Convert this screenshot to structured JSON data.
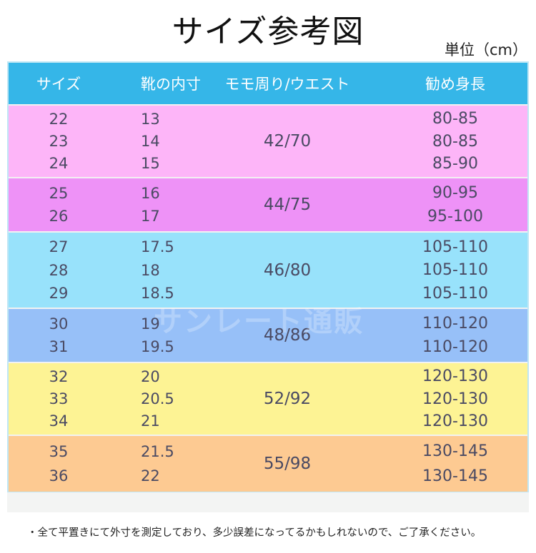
{
  "title": "サイズ参考図",
  "unit": "単位（cm）",
  "headers": [
    "サイズ",
    "靴の内寸",
    "モモ周り/ウエスト",
    "勧め身長"
  ],
  "groups": [
    {
      "color": "#fdb5f8",
      "sizes": [
        "22",
        "23",
        "24"
      ],
      "insole": [
        "13",
        "14",
        "15"
      ],
      "thigh_waist": "42/70",
      "height": [
        "80-85",
        "80-85",
        "85-90"
      ]
    },
    {
      "color": "#ee92f7",
      "sizes": [
        "25",
        "26"
      ],
      "insole": [
        "16",
        "17"
      ],
      "thigh_waist": "44/75",
      "height": [
        "90-95",
        "95-100"
      ]
    },
    {
      "color": "#98e2fb",
      "sizes": [
        "27",
        "28",
        "29"
      ],
      "insole": [
        "17.5",
        "18",
        "18.5"
      ],
      "thigh_waist": "46/80",
      "height": [
        "105-110",
        "105-110",
        "105-110"
      ]
    },
    {
      "color": "#97c0f8",
      "sizes": [
        "30",
        "31"
      ],
      "insole": [
        "19",
        "19.5"
      ],
      "thigh_waist": "48/86",
      "height": [
        "110-120",
        "110-120"
      ]
    },
    {
      "color": "#fdf394",
      "sizes": [
        "32",
        "33",
        "34"
      ],
      "insole": [
        "20",
        "20.5",
        "21"
      ],
      "thigh_waist": "52/92",
      "height": [
        "120-130",
        "120-130",
        "120-130"
      ]
    },
    {
      "color": "#fdca92",
      "sizes": [
        "35",
        "36"
      ],
      "insole": [
        "21.5",
        "22"
      ],
      "thigh_waist": "55/98",
      "height": [
        "130-145",
        "130-145"
      ]
    }
  ],
  "watermark": "サンレート通販",
  "note": "・全て平置きにて外寸を測定しており、多少誤差になってるかもしれないので、ご了承ください。"
}
